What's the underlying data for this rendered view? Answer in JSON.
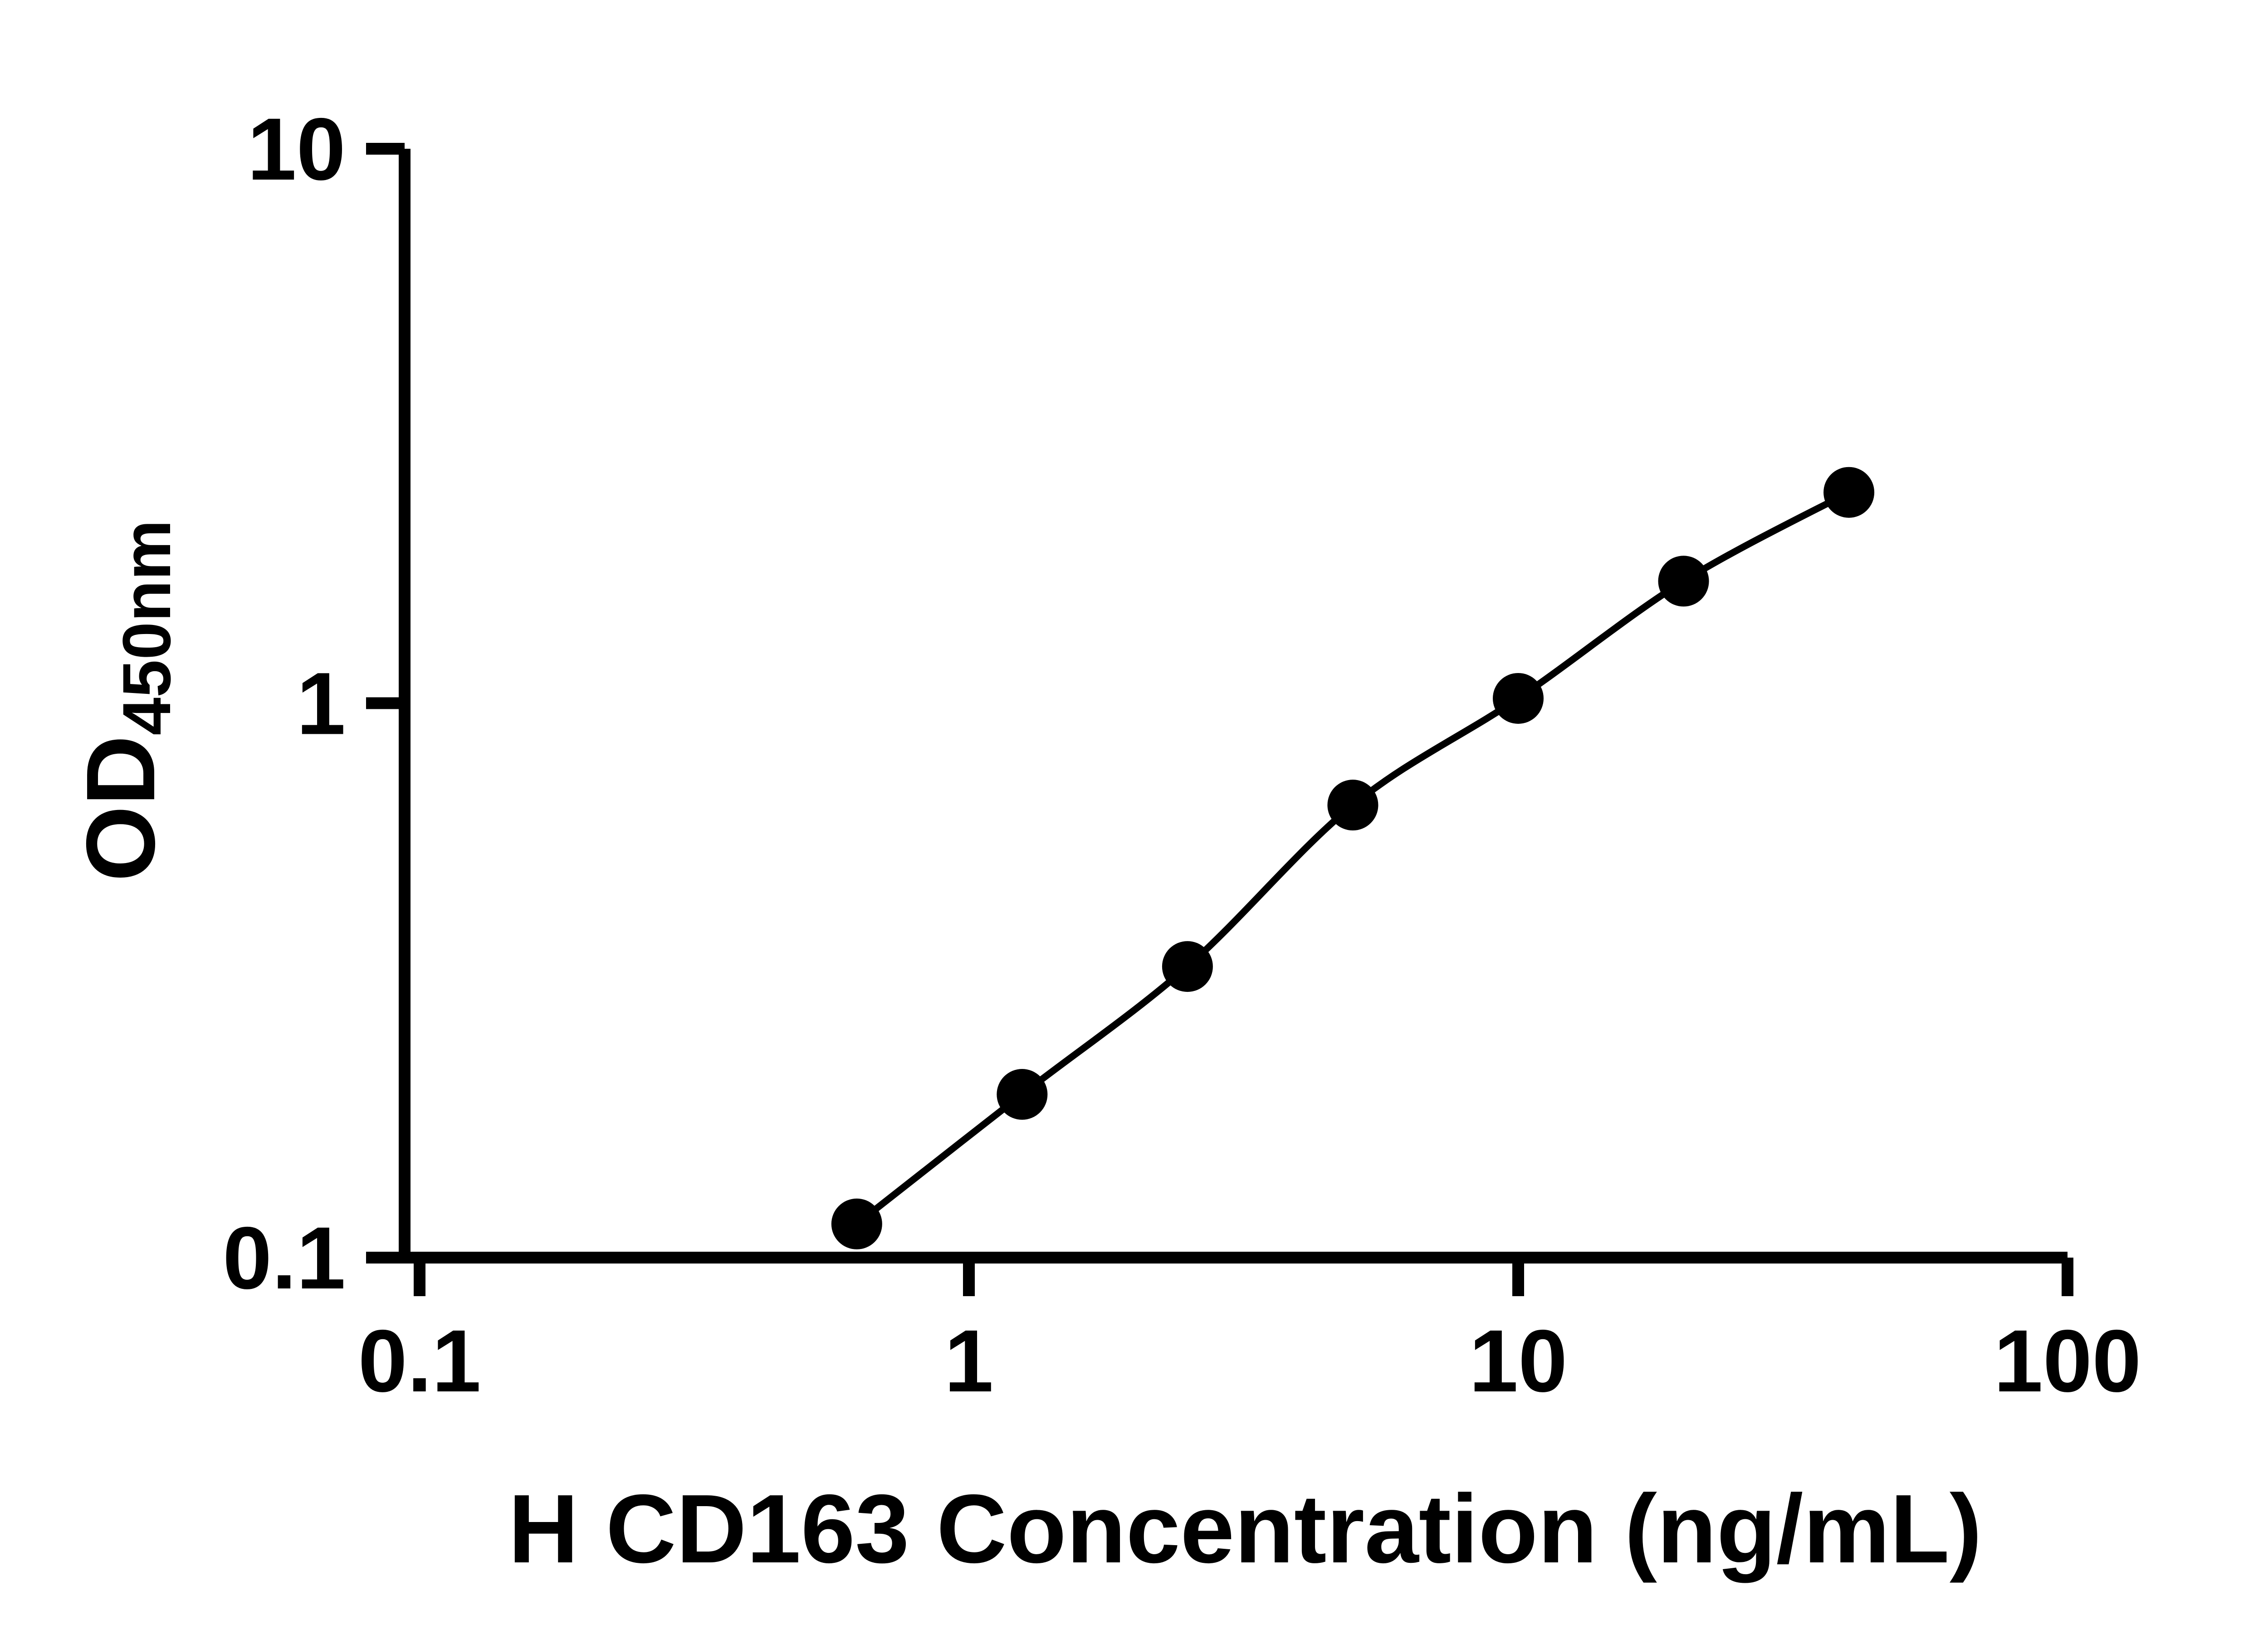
{
  "page": {
    "background_color": "#ffffff",
    "description": "ELISA standard curve figure"
  },
  "chart_data": {
    "type": "scatter",
    "curve": "smooth fitted line through points (4PL-style standard curve)",
    "x": [
      0.625,
      1.25,
      2.5,
      5,
      10,
      20,
      40
    ],
    "y": [
      0.115,
      0.197,
      0.335,
      0.655,
      1.02,
      1.66,
      2.4
    ],
    "title": "",
    "xlabel": "H CD163 Concentration (ng/mL)",
    "ylabel_main": "OD",
    "ylabel_sub": "450nm",
    "x_scale": "log",
    "y_scale": "log",
    "xlim": [
      0.1,
      100
    ],
    "ylim": [
      0.1,
      10
    ],
    "x_ticks": [
      0.1,
      1,
      10,
      100
    ],
    "x_tick_labels": [
      "0.1",
      "1",
      "10",
      "100"
    ],
    "y_ticks": [
      0.1,
      1,
      10
    ],
    "y_tick_labels": [
      "0.1",
      "1",
      "10"
    ],
    "grid": false,
    "legend": "none",
    "marker": "filled-circle",
    "marker_color": "#000000",
    "line_color": "#000000",
    "axis_color": "#000000"
  }
}
